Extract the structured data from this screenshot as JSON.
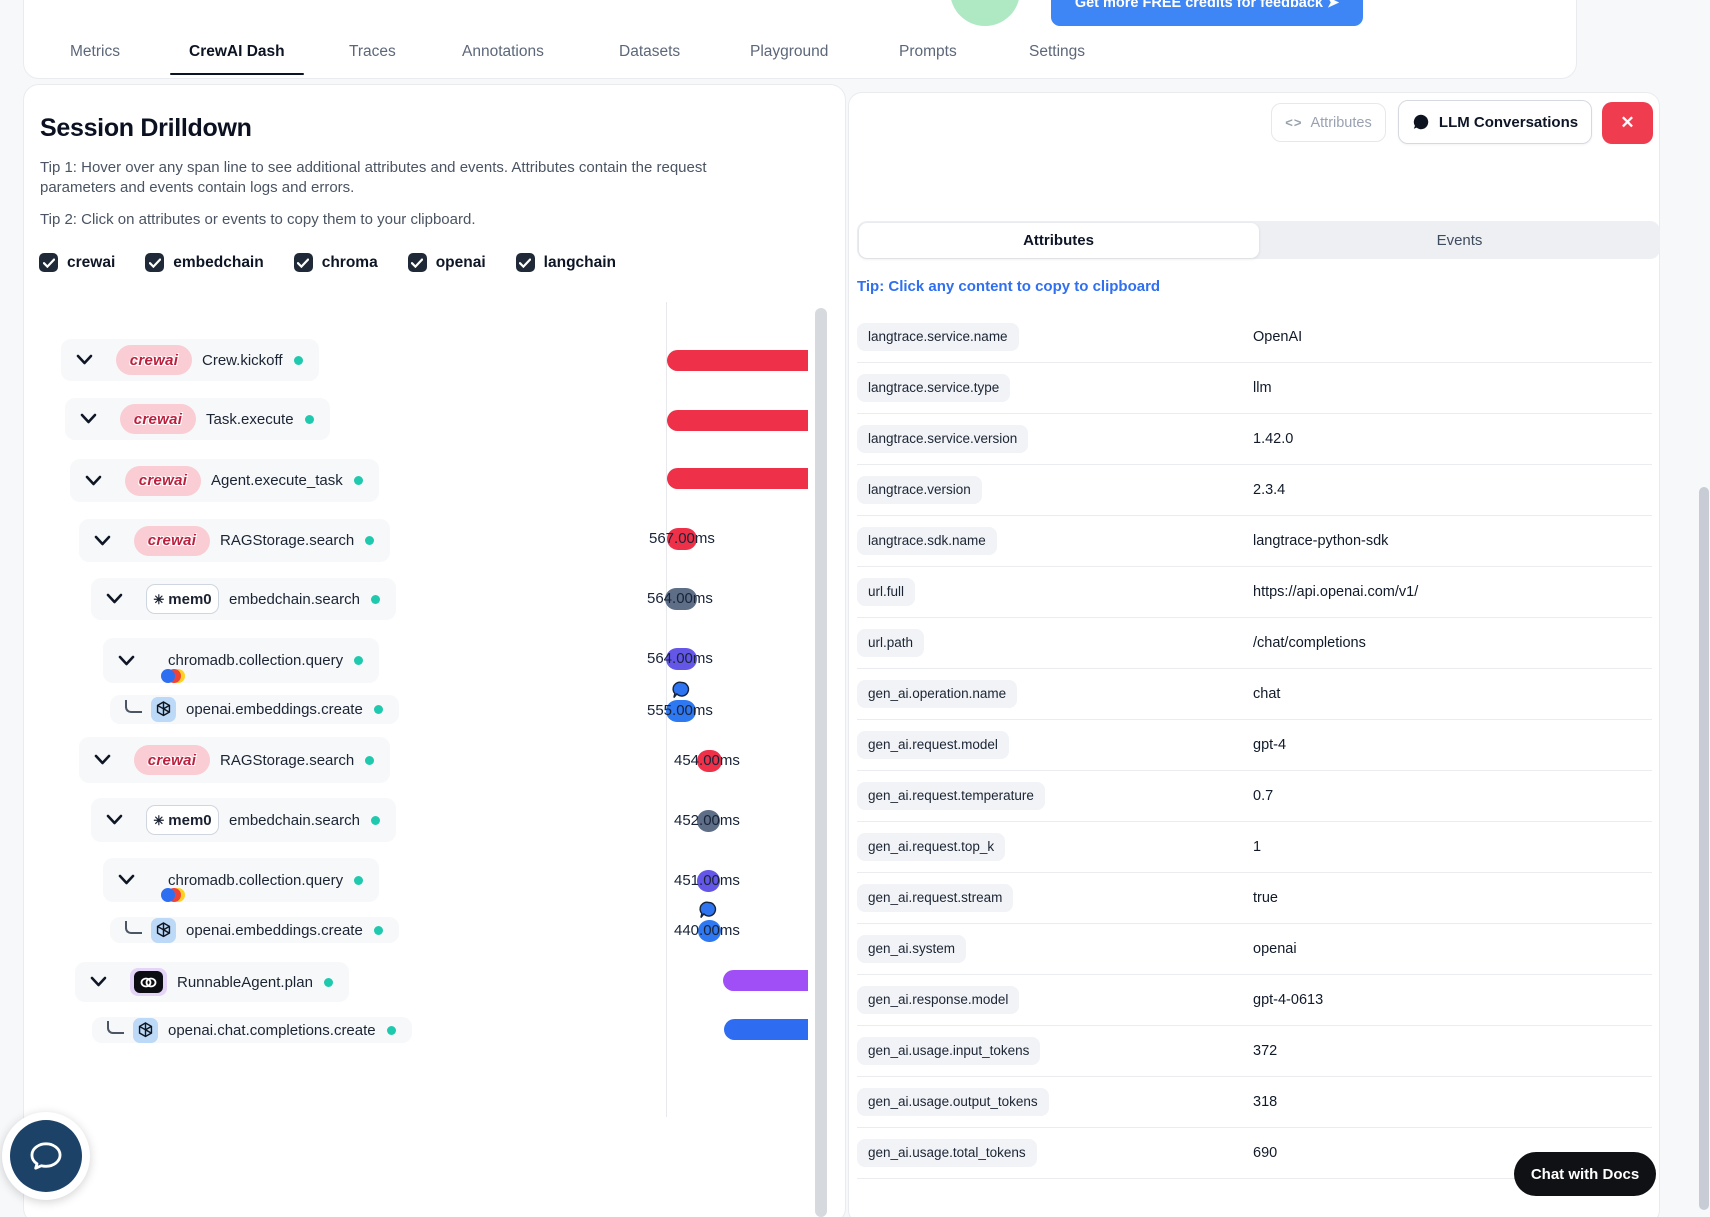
{
  "nav": {
    "tabs": [
      {
        "label": "Metrics",
        "active": false
      },
      {
        "label": "CrewAI Dash",
        "active": true
      },
      {
        "label": "Traces",
        "active": false
      },
      {
        "label": "Annotations",
        "active": false
      },
      {
        "label": "Datasets",
        "active": false
      },
      {
        "label": "Playground",
        "active": false
      },
      {
        "label": "Prompts",
        "active": false
      },
      {
        "label": "Settings",
        "active": false
      }
    ],
    "promo_button_label": "Get more FREE credits for feedback  ➤"
  },
  "left_panel": {
    "title": "Session Drilldown",
    "tip1": "Tip 1: Hover over any span line to see additional attributes and events. Attributes contain the request parameters and events contain logs and errors.",
    "tip2": "Tip 2: Click on attributes or events to copy them to your clipboard.",
    "filters": [
      {
        "label": "crewai",
        "checked": true
      },
      {
        "label": "embedchain",
        "checked": true
      },
      {
        "label": "chroma",
        "checked": true
      },
      {
        "label": "openai",
        "checked": true
      },
      {
        "label": "langchain",
        "checked": true
      }
    ],
    "status_dot_color": "#1ec9ae",
    "spans": [
      {
        "name": "Crew.kickoff",
        "logo": "crewai",
        "duration": "",
        "bar_color": "#ee3048",
        "has_bubble": false
      },
      {
        "name": "Task.execute",
        "logo": "crewai",
        "duration": "",
        "bar_color": "#ee3048",
        "has_bubble": false
      },
      {
        "name": "Agent.execute_task",
        "logo": "crewai",
        "duration": "",
        "bar_color": "#ee3048",
        "has_bubble": false
      },
      {
        "name": "RAGStorage.search",
        "logo": "crewai",
        "duration": "567.00ms",
        "bar_color": "#ee3048",
        "has_bubble": false
      },
      {
        "name": "embedchain.search",
        "logo": "mem0",
        "duration": "564.00ms",
        "bar_color": "#5d6e86",
        "has_bubble": false
      },
      {
        "name": "chromadb.collection.query",
        "logo": "chroma",
        "duration": "564.00ms",
        "bar_color": "#6457e8",
        "has_bubble": false
      },
      {
        "name": "openai.embeddings.create",
        "logo": "openai",
        "duration": "555.00ms",
        "bar_color": "#2e78f2",
        "has_bubble": true
      },
      {
        "name": "RAGStorage.search",
        "logo": "crewai",
        "duration": "454.00ms",
        "bar_color": "#ee3048",
        "has_bubble": false
      },
      {
        "name": "embedchain.search",
        "logo": "mem0",
        "duration": "452.00ms",
        "bar_color": "#5d6e86",
        "has_bubble": false
      },
      {
        "name": "chromadb.collection.query",
        "logo": "chroma",
        "duration": "451.00ms",
        "bar_color": "#6457e8",
        "has_bubble": false
      },
      {
        "name": "openai.embeddings.create",
        "logo": "openai",
        "duration": "440.00ms",
        "bar_color": "#2e78f2",
        "has_bubble": true
      },
      {
        "name": "RunnableAgent.plan",
        "logo": "langchain",
        "duration": "",
        "bar_color": "#a04ef5",
        "has_bubble": false
      },
      {
        "name": "openai.chat.completions.create",
        "logo": "openai",
        "duration": "",
        "bar_color": "#2e6cf2",
        "has_bubble": false
      }
    ]
  },
  "right_panel": {
    "attributes_button_label": "Attributes",
    "llm_conversations_button_label": "LLM Conversations",
    "close_button_color": "#f03c4f",
    "tabs": {
      "attributes": "Attributes",
      "events": "Events"
    },
    "copy_tip": "Tip: Click any content to copy to clipboard",
    "attributes": [
      {
        "key": "langtrace.service.name",
        "value": "OpenAI"
      },
      {
        "key": "langtrace.service.type",
        "value": "llm"
      },
      {
        "key": "langtrace.service.version",
        "value": "1.42.0"
      },
      {
        "key": "langtrace.version",
        "value": "2.3.4"
      },
      {
        "key": "langtrace.sdk.name",
        "value": "langtrace-python-sdk"
      },
      {
        "key": "url.full",
        "value": "https://api.openai.com/v1/"
      },
      {
        "key": "url.path",
        "value": "/chat/completions"
      },
      {
        "key": "gen_ai.operation.name",
        "value": "chat"
      },
      {
        "key": "gen_ai.request.model",
        "value": "gpt-4"
      },
      {
        "key": "gen_ai.request.temperature",
        "value": "0.7"
      },
      {
        "key": "gen_ai.request.top_k",
        "value": "1"
      },
      {
        "key": "gen_ai.request.stream",
        "value": "true"
      },
      {
        "key": "gen_ai.system",
        "value": "openai"
      },
      {
        "key": "gen_ai.response.model",
        "value": "gpt-4-0613"
      },
      {
        "key": "gen_ai.usage.input_tokens",
        "value": "372"
      },
      {
        "key": "gen_ai.usage.output_tokens",
        "value": "318"
      },
      {
        "key": "gen_ai.usage.total_tokens",
        "value": "690"
      }
    ]
  },
  "widgets": {
    "chat_with_docs_label": "Chat with Docs"
  }
}
